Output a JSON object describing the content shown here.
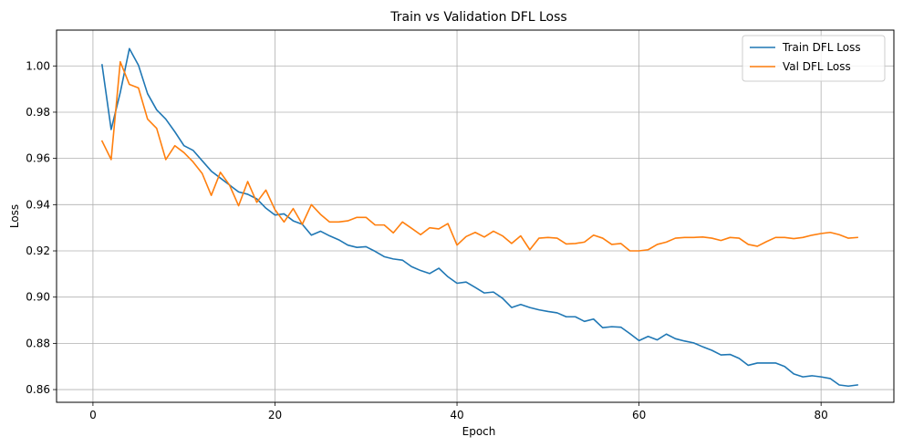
{
  "chart_data": {
    "type": "line",
    "title": "Train vs Validation DFL Loss",
    "xlabel": "Epoch",
    "ylabel": "Loss",
    "xlim": [
      -4,
      88
    ],
    "ylim": [
      0.8545,
      1.0155
    ],
    "xticks": [
      0,
      20,
      40,
      60,
      80
    ],
    "xtick_labels": [
      "0",
      "20",
      "40",
      "60",
      "80"
    ],
    "yticks": [
      0.86,
      0.88,
      0.9,
      0.92,
      0.94,
      0.96,
      0.98,
      1.0
    ],
    "ytick_labels": [
      "0.86",
      "0.88",
      "0.90",
      "0.92",
      "0.94",
      "0.96",
      "0.98",
      "1.00"
    ],
    "grid": true,
    "legend_position": "top-right",
    "x": [
      1,
      2,
      3,
      4,
      5,
      6,
      7,
      8,
      9,
      10,
      11,
      12,
      13,
      14,
      15,
      16,
      17,
      18,
      19,
      20,
      21,
      22,
      23,
      24,
      25,
      26,
      27,
      28,
      29,
      30,
      31,
      32,
      33,
      34,
      35,
      36,
      37,
      38,
      39,
      40,
      41,
      42,
      43,
      44,
      45,
      46,
      47,
      48,
      49,
      50,
      51,
      52,
      53,
      54,
      55,
      56,
      57,
      58,
      59,
      60,
      61,
      62,
      63,
      64,
      65,
      66,
      67,
      68,
      69,
      70,
      71,
      72,
      73,
      74,
      75,
      76,
      77,
      78,
      79,
      80,
      81,
      82,
      83,
      84
    ],
    "series": [
      {
        "name": "Train DFL Loss",
        "color": "#1f77b4",
        "values": [
          1.0005,
          0.9725,
          0.9885,
          1.0075,
          1.0003,
          0.988,
          0.981,
          0.977,
          0.9715,
          0.9655,
          0.9635,
          0.959,
          0.9545,
          0.9515,
          0.9485,
          0.9455,
          0.9445,
          0.9425,
          0.9385,
          0.9355,
          0.936,
          0.933,
          0.9315,
          0.9268,
          0.9285,
          0.9265,
          0.9248,
          0.9225,
          0.9215,
          0.9218,
          0.9198,
          0.9175,
          0.9165,
          0.916,
          0.9132,
          0.9115,
          0.9102,
          0.9125,
          0.9088,
          0.906,
          0.9065,
          0.9042,
          0.9018,
          0.9022,
          0.8995,
          0.8955,
          0.8968,
          0.8955,
          0.8945,
          0.8938,
          0.8932,
          0.8915,
          0.8915,
          0.8895,
          0.8905,
          0.8868,
          0.8872,
          0.887,
          0.8842,
          0.8812,
          0.883,
          0.8815,
          0.884,
          0.882,
          0.881,
          0.8802,
          0.8785,
          0.877,
          0.875,
          0.8752,
          0.8735,
          0.8705,
          0.8715,
          0.8715,
          0.8715,
          0.87,
          0.8668,
          0.8655,
          0.866,
          0.8655,
          0.8648,
          0.862,
          0.8615,
          0.862
        ]
      },
      {
        "name": "Val DFL Loss",
        "color": "#ff7f0e",
        "values": [
          0.9675,
          0.9595,
          1.0018,
          0.992,
          0.9905,
          0.977,
          0.973,
          0.9595,
          0.9655,
          0.9625,
          0.9585,
          0.9535,
          0.944,
          0.954,
          0.9485,
          0.9395,
          0.95,
          0.941,
          0.9463,
          0.9378,
          0.9325,
          0.9383,
          0.9315,
          0.94,
          0.9358,
          0.9325,
          0.9325,
          0.933,
          0.9345,
          0.9345,
          0.9312,
          0.9312,
          0.9278,
          0.9325,
          0.9298,
          0.927,
          0.93,
          0.9295,
          0.9318,
          0.9225,
          0.9262,
          0.928,
          0.926,
          0.9285,
          0.9265,
          0.9232,
          0.9265,
          0.9205,
          0.9255,
          0.9258,
          0.9255,
          0.923,
          0.9232,
          0.9238,
          0.9268,
          0.9255,
          0.9228,
          0.9232,
          0.92,
          0.92,
          0.9205,
          0.9228,
          0.9238,
          0.9255,
          0.9258,
          0.9258,
          0.926,
          0.9255,
          0.9245,
          0.9258,
          0.9255,
          0.9228,
          0.922,
          0.924,
          0.9258,
          0.9258,
          0.9253,
          0.9258,
          0.9268,
          0.9275,
          0.928,
          0.927,
          0.9255,
          0.9258
        ]
      }
    ]
  }
}
